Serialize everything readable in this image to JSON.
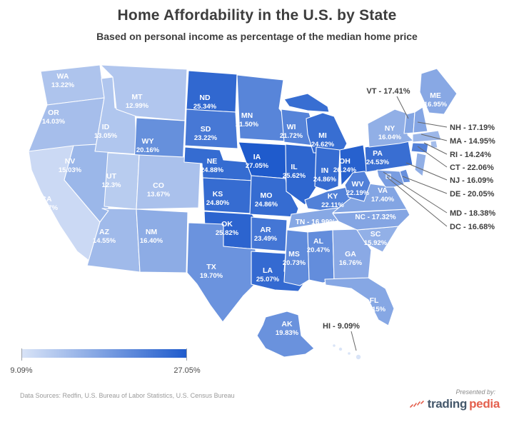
{
  "title": "Home Affordability in the U.S. by State",
  "subtitle": "Based on personal income as percentage of the median home price",
  "legend": {
    "min_label": "9.09%",
    "max_label": "27.05%"
  },
  "footer": {
    "sources": "Data Sources: Redfin, U.S. Bureau of Labor Statistics, U.S. Census Bureau",
    "presented_by": "Presented by:",
    "logo_part1": "trading",
    "logo_part2": "pedia",
    "logo_icon": "sparkline-icon"
  },
  "colors": {
    "accent_min": "#d9e4f7",
    "accent_max": "#1f5bcc",
    "state_border": "#ffffff",
    "state_label_text": "#ffffff",
    "callout_text": "#3e3e3e",
    "leader_line": "#666666",
    "title_text": "#3d3d3d",
    "logo_trading": "#45586b",
    "logo_pedia": "#e4604e"
  },
  "chart_data": {
    "type": "heatmap",
    "variant": "us-state-choropleth",
    "title": "Home Affordability in the U.S. by State",
    "subtitle": "Based on personal income as percentage of the median home price",
    "legend": {
      "min": 9.09,
      "max": 27.05,
      "min_label": "9.09%",
      "max_label": "27.05%"
    },
    "states": [
      {
        "abbr": "WA",
        "value": 13.22,
        "label": "13.22%"
      },
      {
        "abbr": "OR",
        "value": 14.03,
        "label": "14.03%"
      },
      {
        "abbr": "CA",
        "value": 10.47,
        "label": "10.47%"
      },
      {
        "abbr": "NV",
        "value": 15.03,
        "label": "15.03%"
      },
      {
        "abbr": "ID",
        "value": 13.05,
        "label": "13.05%"
      },
      {
        "abbr": "MT",
        "value": 12.99,
        "label": "12.99%"
      },
      {
        "abbr": "WY",
        "value": 20.16,
        "label": "20.16%"
      },
      {
        "abbr": "UT",
        "value": 12.3,
        "label": "12.3%"
      },
      {
        "abbr": "CO",
        "value": 13.67,
        "label": "13.67%"
      },
      {
        "abbr": "AZ",
        "value": 14.55,
        "label": "14.55%"
      },
      {
        "abbr": "NM",
        "value": 16.4,
        "label": "16.40%"
      },
      {
        "abbr": "ND",
        "value": 25.34,
        "label": "25.34%"
      },
      {
        "abbr": "SD",
        "value": 23.22,
        "label": "23.22%"
      },
      {
        "abbr": "NE",
        "value": 24.88,
        "label": "24.88%"
      },
      {
        "abbr": "KS",
        "value": 24.8,
        "label": "24.80%"
      },
      {
        "abbr": "OK",
        "value": 25.82,
        "label": "25.82%"
      },
      {
        "abbr": "TX",
        "value": 19.7,
        "label": "19.70%"
      },
      {
        "abbr": "MN",
        "value": 21.5,
        "label": "21.50%"
      },
      {
        "abbr": "IA",
        "value": 27.05,
        "label": "27.05%"
      },
      {
        "abbr": "MO",
        "value": 24.86,
        "label": "24.86%"
      },
      {
        "abbr": "AR",
        "value": 23.49,
        "label": "23.49%"
      },
      {
        "abbr": "LA",
        "value": 25.07,
        "label": "25.07%"
      },
      {
        "abbr": "WI",
        "value": 21.72,
        "label": "21.72%"
      },
      {
        "abbr": "IL",
        "value": 25.62,
        "label": "25.62%"
      },
      {
        "abbr": "MI",
        "value": 24.62,
        "label": "24.62%"
      },
      {
        "abbr": "IN",
        "value": 24.86,
        "label": "24.86%"
      },
      {
        "abbr": "OH",
        "value": 26.24,
        "label": "26.24%"
      },
      {
        "abbr": "KY",
        "value": 22.11,
        "label": "22.11%"
      },
      {
        "abbr": "TN",
        "value": 16.99,
        "label": "16.99%"
      },
      {
        "abbr": "MS",
        "value": 20.73,
        "label": "20.73%"
      },
      {
        "abbr": "AL",
        "value": 20.47,
        "label": "20.47%"
      },
      {
        "abbr": "GA",
        "value": 16.76,
        "label": "16.76%"
      },
      {
        "abbr": "FL",
        "value": 17.15,
        "label": "17.15%"
      },
      {
        "abbr": "SC",
        "value": 15.92,
        "label": "15.92%"
      },
      {
        "abbr": "NC",
        "value": 17.32,
        "label": "17.32%"
      },
      {
        "abbr": "VA",
        "value": 17.4,
        "label": "17.40%"
      },
      {
        "abbr": "WV",
        "value": 22.19,
        "label": "22.19%"
      },
      {
        "abbr": "PA",
        "value": 24.53,
        "label": "24.53%"
      },
      {
        "abbr": "NY",
        "value": 16.04,
        "label": "16.04%"
      },
      {
        "abbr": "ME",
        "value": 16.95,
        "label": "16.95%"
      },
      {
        "abbr": "VT",
        "value": 17.41,
        "label": "17.41%"
      },
      {
        "abbr": "NH",
        "value": 17.19,
        "label": "17.19%"
      },
      {
        "abbr": "MA",
        "value": 14.95,
        "label": "14.95%"
      },
      {
        "abbr": "RI",
        "value": 14.24,
        "label": "14.24%"
      },
      {
        "abbr": "CT",
        "value": 22.06,
        "label": "22.06%"
      },
      {
        "abbr": "NJ",
        "value": 16.09,
        "label": "16.09%"
      },
      {
        "abbr": "DE",
        "value": 20.05,
        "label": "20.05%"
      },
      {
        "abbr": "MD",
        "value": 18.38,
        "label": "18.38%"
      },
      {
        "abbr": "DC",
        "value": 16.68,
        "label": "16.68%"
      },
      {
        "abbr": "AK",
        "value": 19.83,
        "label": "19.83%"
      },
      {
        "abbr": "HI",
        "value": 9.09,
        "label": "9.09%"
      }
    ]
  }
}
